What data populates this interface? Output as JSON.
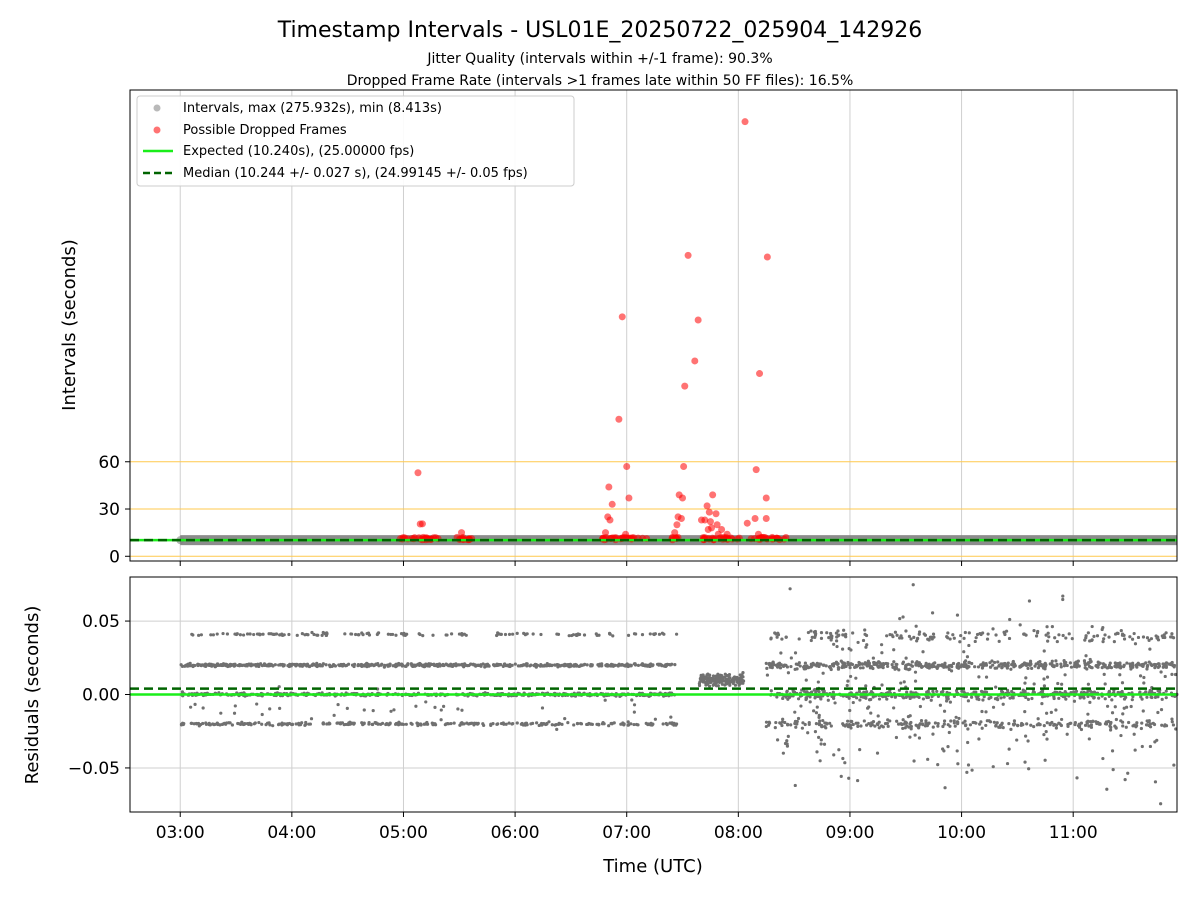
{
  "figure": {
    "title": "Timestamp Intervals - USL01E_20250722_025904_142926",
    "subtitle1": "Jitter Quality (intervals within +/-1 frame): 90.3%",
    "subtitle2": "Dropped Frame Rate (intervals >1 frames late within 50 FF files): 16.5%",
    "xlabel": "Time (UTC)"
  },
  "colors": {
    "intervals": "#808080",
    "dropped": "#ff0000",
    "expected": "#1aee1a",
    "median": "#006400",
    "reference_lines": "#ffc94d",
    "grid": "#cfcfcf",
    "residual_points": "#707070"
  },
  "chart_data": [
    {
      "type": "scatter",
      "ylabel": "Intervals (seconds)",
      "xlim_hours": [
        2.55,
        11.93
      ],
      "ylim": [
        -3,
        296
      ],
      "x_ticks": [
        "03:00",
        "04:00",
        "05:00",
        "06:00",
        "07:00",
        "08:00",
        "09:00",
        "10:00",
        "11:00"
      ],
      "x_tick_hours": [
        3,
        4,
        5,
        6,
        7,
        8,
        9,
        10,
        11
      ],
      "y_ticks": [
        0,
        30,
        60
      ],
      "reference_lines": [
        0,
        30,
        60
      ],
      "grid": "vertical",
      "legend_position": "upper-left",
      "legend": [
        "Intervals, max (275.932s), min (8.413s)",
        "Possible Dropped Frames",
        "Expected (10.240s), (25.00000 fps)",
        "Median (10.244 +/- 0.027 s), (24.99145 +/- 0.05 fps)"
      ],
      "intervals_band": {
        "x_range": [
          3.0,
          11.93
        ],
        "y": 10.24
      },
      "expected": 10.24,
      "median": 10.244,
      "dropped_points": [
        [
          5.13,
          53
        ],
        [
          5.15,
          20.5
        ],
        [
          5.17,
          20.6
        ],
        [
          5.17,
          10.5
        ],
        [
          5.2,
          10.5
        ],
        [
          5.52,
          15
        ],
        [
          5.48,
          12
        ],
        [
          6.8,
          10.5
        ],
        [
          6.81,
          15
        ],
        [
          6.83,
          25
        ],
        [
          6.84,
          44
        ],
        [
          6.85,
          23
        ],
        [
          6.87,
          33
        ],
        [
          6.9,
          10.5
        ],
        [
          6.93,
          87
        ],
        [
          6.96,
          152
        ],
        [
          6.99,
          14
        ],
        [
          7.0,
          57
        ],
        [
          7.02,
          37
        ],
        [
          7.41,
          12
        ],
        [
          7.43,
          15
        ],
        [
          7.45,
          20
        ],
        [
          7.46,
          25
        ],
        [
          7.47,
          39
        ],
        [
          7.49,
          24
        ],
        [
          7.5,
          37
        ],
        [
          7.51,
          57
        ],
        [
          7.52,
          108
        ],
        [
          7.55,
          191
        ],
        [
          7.61,
          124
        ],
        [
          7.64,
          150
        ],
        [
          7.67,
          23
        ],
        [
          7.69,
          10.5
        ],
        [
          7.7,
          23
        ],
        [
          7.72,
          32
        ],
        [
          7.73,
          17
        ],
        [
          7.74,
          28
        ],
        [
          7.75,
          22
        ],
        [
          7.76,
          18
        ],
        [
          7.77,
          39
        ],
        [
          7.78,
          10.5
        ],
        [
          7.8,
          27
        ],
        [
          7.81,
          20
        ],
        [
          7.82,
          14
        ],
        [
          7.85,
          17
        ],
        [
          7.87,
          12
        ],
        [
          7.9,
          14
        ],
        [
          8.06,
          275.9
        ],
        [
          8.08,
          21
        ],
        [
          8.15,
          24
        ],
        [
          8.16,
          55
        ],
        [
          8.18,
          14
        ],
        [
          8.19,
          116
        ],
        [
          8.21,
          12
        ],
        [
          8.25,
          37
        ],
        [
          8.26,
          190
        ],
        [
          8.25,
          24
        ]
      ],
      "dropped_clusters": [
        [
          4.93,
          5.32
        ],
        [
          5.45,
          5.65
        ],
        [
          6.78,
          7.18
        ],
        [
          7.38,
          7.48
        ],
        [
          7.65,
          8.02
        ],
        [
          8.1,
          8.45
        ]
      ]
    },
    {
      "type": "scatter",
      "ylabel": "Residuals (seconds)",
      "xlim_hours": [
        2.55,
        11.93
      ],
      "ylim": [
        -0.08,
        0.08
      ],
      "x_ticks": [
        "03:00",
        "04:00",
        "05:00",
        "06:00",
        "07:00",
        "08:00",
        "09:00",
        "10:00",
        "11:00"
      ],
      "x_tick_hours": [
        3,
        4,
        5,
        6,
        7,
        8,
        9,
        10,
        11
      ],
      "y_ticks": [
        "−0.05",
        "0.00",
        "0.05"
      ],
      "y_tick_values": [
        -0.05,
        0.0,
        0.05
      ],
      "grid": "both",
      "expected": 0.0,
      "median": 0.004,
      "segments": [
        {
          "x_range": [
            3.0,
            7.45
          ],
          "pattern": "banded",
          "levels": [
            0.02,
            0.0,
            -0.02,
            0.04
          ],
          "n": 1500
        },
        {
          "x_range": [
            7.65,
            8.05
          ],
          "pattern": "tight",
          "levels": [
            0.01,
            0.005,
            0.015
          ],
          "n": 160
        },
        {
          "x_range": [
            8.25,
            11.93
          ],
          "pattern": "noisy",
          "levels": [
            0.02,
            0.0,
            -0.02,
            0.04,
            -0.04
          ],
          "n": 1500
        }
      ]
    }
  ]
}
